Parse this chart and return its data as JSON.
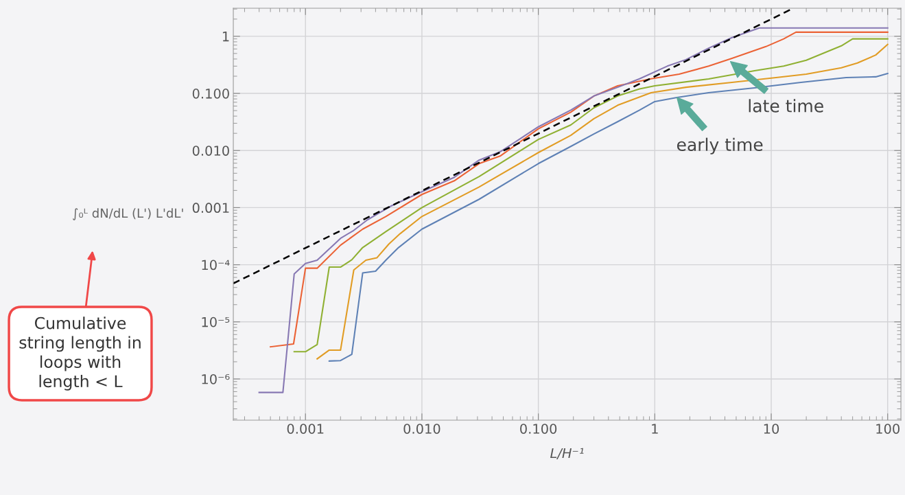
{
  "chart_data": {
    "type": "line",
    "xlabel": "L/H⁻¹",
    "ylabel": "∫₀ᴸ dN/dL (L') L'dL'",
    "log": "xy",
    "grid": true,
    "xlim": [
      0.00024,
      130
    ],
    "ylim": [
      1.9e-07,
      3.1
    ],
    "xticks": [
      {
        "value": 0.001,
        "label": "0.001"
      },
      {
        "value": 0.01,
        "label": "0.010"
      },
      {
        "value": 0.1,
        "label": "0.100"
      },
      {
        "value": 1,
        "label": "1"
      },
      {
        "value": 10,
        "label": "10"
      },
      {
        "value": 100,
        "label": "100"
      }
    ],
    "yticks": [
      {
        "value": 1e-06,
        "label": "10⁻⁶"
      },
      {
        "value": 1e-05,
        "label": "10⁻⁵"
      },
      {
        "value": 0.0001,
        "label": "10⁻⁴"
      },
      {
        "value": 0.001,
        "label": "0.001"
      },
      {
        "value": 0.01,
        "label": "0.010"
      },
      {
        "value": 0.1,
        "label": "0.100"
      },
      {
        "value": 1,
        "label": "1"
      }
    ],
    "series": [
      {
        "color": "#5e81b5",
        "x": [
          0.0016,
          0.002,
          0.0025,
          0.0031,
          0.004,
          0.0049,
          0.0063,
          0.01,
          0.031,
          0.1,
          0.19,
          0.3,
          0.48,
          0.74,
          1,
          1.55,
          2.9,
          7.2,
          18,
          44,
          79,
          100
        ],
        "values": [
          2.06e-06,
          2.1e-06,
          2.7e-06,
          7.2e-05,
          7.7e-05,
          0.00012,
          0.0002,
          0.00042,
          0.0014,
          0.0059,
          0.0118,
          0.0195,
          0.032,
          0.051,
          0.072,
          0.085,
          0.103,
          0.125,
          0.156,
          0.189,
          0.195,
          0.223
        ]
      },
      {
        "color": "#e19c24",
        "x": [
          0.00126,
          0.0016,
          0.002,
          0.0026,
          0.0033,
          0.0041,
          0.0052,
          0.0065,
          0.01,
          0.031,
          0.1,
          0.19,
          0.3,
          0.48,
          0.93,
          1.85,
          4.6,
          11,
          20,
          40,
          55,
          79,
          100
        ],
        "values": [
          2.25e-06,
          3.2e-06,
          3.2e-06,
          8.1e-05,
          0.00012,
          0.000132,
          0.00023,
          0.00035,
          0.0007,
          0.0023,
          0.0092,
          0.0184,
          0.036,
          0.062,
          0.103,
          0.128,
          0.156,
          0.189,
          0.217,
          0.28,
          0.34,
          0.47,
          0.72
        ]
      },
      {
        "color": "#8fb032",
        "x": [
          0.0008,
          0.001,
          0.00126,
          0.0016,
          0.002,
          0.0025,
          0.0031,
          0.0049,
          0.01,
          0.031,
          0.1,
          0.19,
          0.3,
          0.48,
          0.74,
          1,
          2.9,
          7.2,
          12.8,
          20,
          40,
          50,
          100
        ],
        "values": [
          3e-06,
          3e-06,
          4e-06,
          9.1e-05,
          9.1e-05,
          0.000122,
          0.0002,
          0.00038,
          0.001,
          0.0035,
          0.0156,
          0.028,
          0.056,
          0.09,
          0.12,
          0.136,
          0.179,
          0.25,
          0.3,
          0.38,
          0.68,
          0.9,
          0.9
        ]
      },
      {
        "color": "#eb6235",
        "x": [
          0.0005,
          0.00079,
          0.001,
          0.00126,
          0.002,
          0.0031,
          0.0049,
          0.01,
          0.019,
          0.031,
          0.047,
          0.1,
          0.19,
          0.3,
          0.48,
          0.93,
          1.62,
          2.9,
          4.6,
          9,
          12.8,
          16.3,
          100
        ],
        "values": [
          3.65e-06,
          4.1e-06,
          8.7e-05,
          8.7e-05,
          0.00022,
          0.00042,
          0.0007,
          0.0017,
          0.00295,
          0.0059,
          0.008,
          0.024,
          0.047,
          0.09,
          0.136,
          0.18,
          0.217,
          0.3,
          0.41,
          0.66,
          0.9,
          1.18,
          1.18
        ]
      },
      {
        "color": "#8778b3",
        "x": [
          0.0004,
          0.00064,
          0.0008,
          0.001,
          0.00126,
          0.002,
          0.0026,
          0.0034,
          0.0054,
          0.01,
          0.019,
          0.031,
          0.047,
          0.1,
          0.19,
          0.3,
          0.48,
          0.74,
          1.28,
          1.85,
          2.9,
          4.6,
          7.9,
          100
        ],
        "values": [
          5.8e-07,
          5.8e-07,
          6.9e-05,
          0.000105,
          0.00012,
          0.00029,
          0.0004,
          0.00061,
          0.00106,
          0.0019,
          0.0034,
          0.0068,
          0.0095,
          0.026,
          0.051,
          0.09,
          0.128,
          0.18,
          0.3,
          0.39,
          0.62,
          0.95,
          1.4,
          1.4
        ]
      },
      {
        "color": "#000000",
        "line_style": "dashed",
        "x": [
          0.00024,
          15.5
        ],
        "values": [
          4.7e-05,
          3.1
        ]
      }
    ],
    "annotations": [
      {
        "text": "late time",
        "x": 4.47,
        "y": 0.36
      },
      {
        "text": "early time",
        "x": 1.55,
        "y": 0.085
      },
      "Cumulative\nstring length in\nloops with\nlength < L"
    ]
  }
}
